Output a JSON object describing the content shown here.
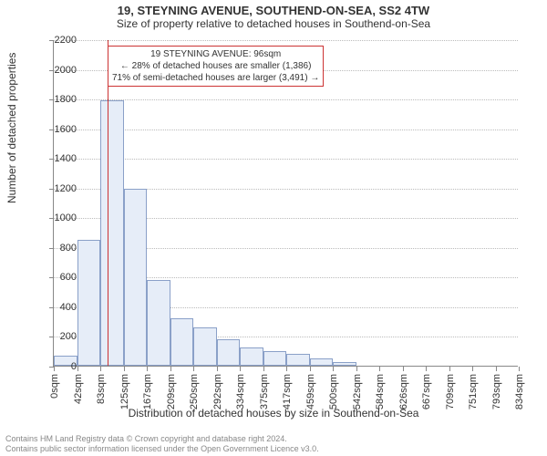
{
  "title": "19, STEYNING AVENUE, SOUTHEND-ON-SEA, SS2 4TW",
  "subtitle": "Size of property relative to detached houses in Southend-on-Sea",
  "y_axis": {
    "label": "Number of detached properties",
    "min": 0,
    "max": 2200,
    "ticks": [
      0,
      200,
      400,
      600,
      800,
      1000,
      1200,
      1400,
      1600,
      1800,
      2000,
      2200
    ],
    "grid_color": "#bbbbbb",
    "axis_color": "#888888",
    "label_fontsize": 12,
    "tick_fontsize": 11
  },
  "x_axis": {
    "label": "Distribution of detached houses by size in Southend-on-Sea",
    "tick_labels": [
      "0sqm",
      "42sqm",
      "83sqm",
      "125sqm",
      "167sqm",
      "209sqm",
      "250sqm",
      "292sqm",
      "334sqm",
      "375sqm",
      "417sqm",
      "459sqm",
      "500sqm",
      "542sqm",
      "584sqm",
      "626sqm",
      "667sqm",
      "709sqm",
      "751sqm",
      "793sqm",
      "834sqm"
    ],
    "axis_color": "#888888",
    "label_fontsize": 12,
    "tick_fontsize": 11
  },
  "histogram": {
    "type": "histogram",
    "bins": 20,
    "values": [
      70,
      850,
      1790,
      1190,
      580,
      320,
      260,
      180,
      120,
      100,
      80,
      50,
      25,
      0,
      0,
      0,
      0,
      0,
      0,
      0
    ],
    "bar_fill": "#e6edf8",
    "bar_stroke": "#8aa0c8",
    "background_color": "#ffffff"
  },
  "marker": {
    "position_sqm": 96,
    "x_domain_max": 834,
    "line_color": "#cc3333",
    "annotation_border": "#cc3333",
    "annotation_bg": "#ffffff",
    "line1": "19 STEYNING AVENUE: 96sqm",
    "line2": "← 28% of detached houses are smaller (1,386)",
    "line3": "71% of semi-detached houses are larger (3,491) →"
  },
  "footer": {
    "line1": "Contains HM Land Registry data © Crown copyright and database right 2024.",
    "line2": "Contains public sector information licensed under the Open Government Licence v3.0.",
    "color": "#888888",
    "fontsize": 9
  }
}
